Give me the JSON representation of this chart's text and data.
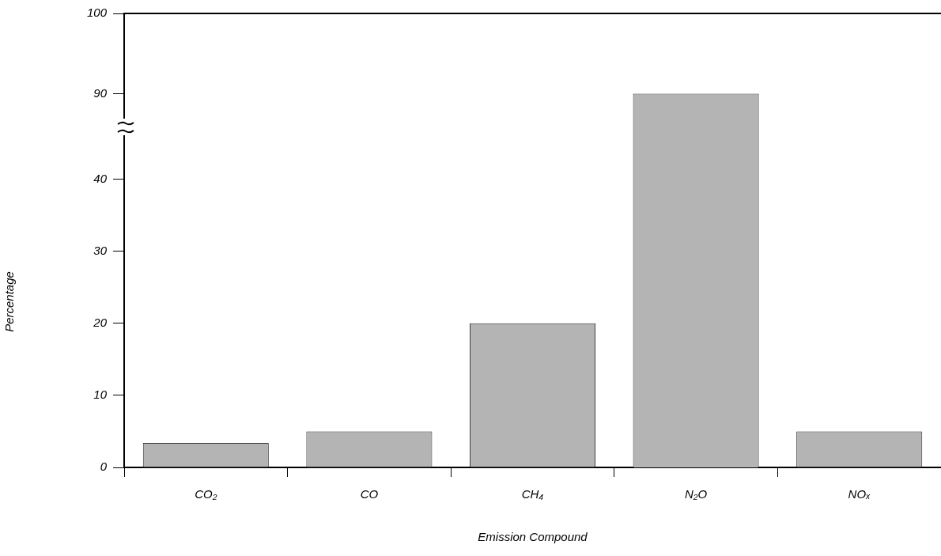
{
  "chart_data": [
    {
      "type": "bar",
      "categories": [
        null,
        null,
        null,
        null,
        null
      ],
      "values": [
        null,
        null,
        null,
        90,
        null
      ],
      "color": "#b4b4b4",
      "ylim": [
        87,
        100
      ],
      "yticks": [
        90,
        100
      ],
      "tick_labels": "y",
      "grid": false,
      "legend": false
    },
    {
      "type": "bar",
      "xlabel": "Emission Compound",
      "ylabel": "Percentage",
      "categories": [
        "CO₂",
        "CO",
        "CH₄",
        "N₂O",
        "NOₓ"
      ],
      "values": [
        3.4,
        5,
        20,
        null,
        5
      ],
      "color": "#b4b4b4",
      "ylim": [
        0,
        46
      ],
      "yticks": [
        0,
        10,
        20,
        30,
        40
      ],
      "grid": false,
      "legend": false
    }
  ]
}
